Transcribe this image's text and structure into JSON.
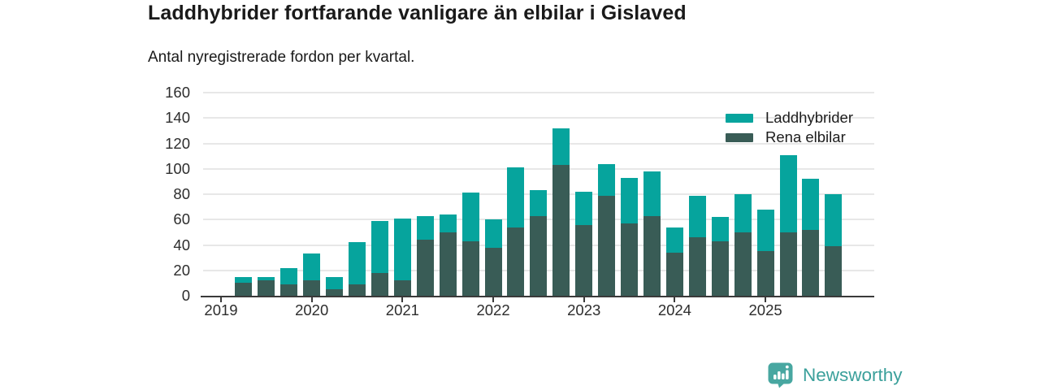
{
  "header": {
    "title": "Laddhybrider fortfarande vanligare än elbilar i Gislaved",
    "subtitle": "Antal nyregistrerade fordon per kvartal."
  },
  "chart_data": {
    "type": "bar",
    "stacked": true,
    "title": "Laddhybrider fortfarande vanligare än elbilar i Gislaved",
    "subtitle": "Antal nyregistrerade fordon per kvartal.",
    "ylim": [
      0,
      160
    ],
    "yticks": [
      0,
      20,
      40,
      60,
      80,
      100,
      120,
      140,
      160
    ],
    "year_ticks": [
      "2019",
      "2020",
      "2021",
      "2022",
      "2023",
      "2024",
      "2025"
    ],
    "grid": true,
    "legend_position": "top-right",
    "categories": [
      "2019Q2",
      "2019Q3",
      "2019Q4",
      "2020Q1",
      "2020Q2",
      "2020Q3",
      "2020Q4",
      "2021Q1",
      "2021Q2",
      "2021Q3",
      "2021Q4",
      "2022Q1",
      "2022Q2",
      "2022Q3",
      "2022Q4",
      "2023Q1",
      "2023Q2",
      "2023Q3",
      "2023Q4",
      "2024Q1",
      "2024Q2",
      "2024Q3",
      "2024Q4",
      "2025Q1",
      "2025Q2",
      "2025Q3",
      "2025Q4"
    ],
    "series": [
      {
        "name": "Laddhybrider",
        "color": "#06a49d",
        "stack_order": "top",
        "values": [
          5,
          3,
          13,
          21,
          10,
          33,
          41,
          49,
          19,
          14,
          38,
          22,
          47,
          20,
          29,
          26,
          25,
          36,
          35,
          20,
          33,
          19,
          30,
          33,
          61,
          40,
          41
        ]
      },
      {
        "name": "Rena elbilar",
        "color": "#395c56",
        "stack_order": "bottom",
        "values": [
          10,
          12,
          9,
          12,
          5,
          9,
          18,
          12,
          44,
          50,
          43,
          38,
          54,
          63,
          103,
          56,
          79,
          57,
          63,
          34,
          46,
          43,
          50,
          35,
          50,
          52,
          39
        ]
      }
    ],
    "totals": [
      15,
      15,
      22,
      33,
      15,
      42,
      59,
      61,
      63,
      64,
      81,
      60,
      101,
      83,
      132,
      82,
      104,
      93,
      98,
      54,
      79,
      62,
      80,
      68,
      111,
      92,
      80
    ]
  },
  "footer": {
    "brand": "Newsworthy",
    "brand_color": "#3ba09b",
    "icon_color": "#48a7a1"
  }
}
